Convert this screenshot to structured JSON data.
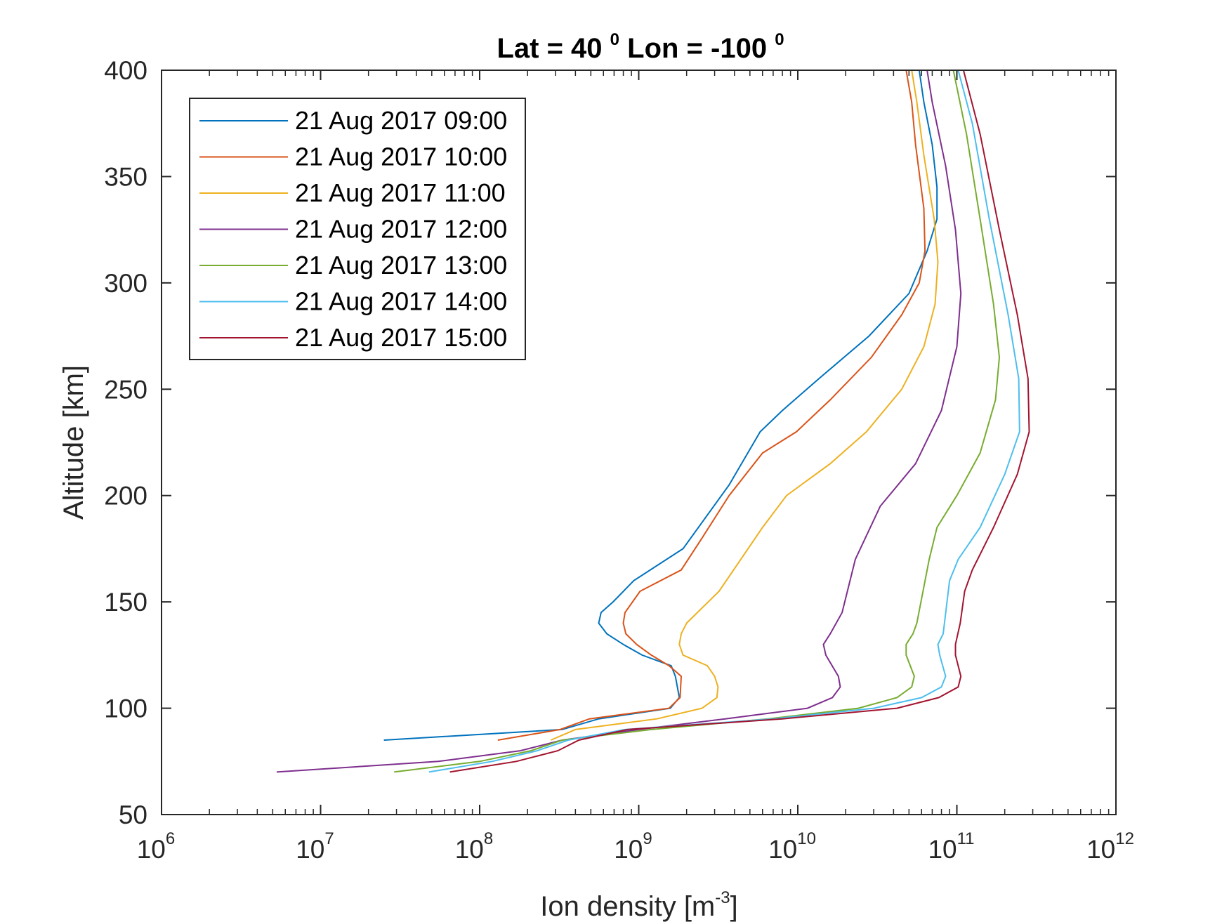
{
  "chart_data": {
    "type": "line",
    "title": {
      "main_a": "Lat = 40 ",
      "sup_a": "0",
      "main_b": " Lon = -100 ",
      "sup_b": "0"
    },
    "xlabel": {
      "text": "Ion density [m",
      "sup": "-3",
      "end": "]"
    },
    "ylabel": "Altitude [km]",
    "xscale": "log",
    "xlim": [
      1000000,
      1000000000000
    ],
    "ylim": [
      50,
      400
    ],
    "grid": false,
    "legend_position": "top-left",
    "x_ticks": [
      {
        "base": "10",
        "exp": "6",
        "value": 1000000
      },
      {
        "base": "10",
        "exp": "7",
        "value": 10000000
      },
      {
        "base": "10",
        "exp": "8",
        "value": 100000000
      },
      {
        "base": "10",
        "exp": "9",
        "value": 1000000000
      },
      {
        "base": "10",
        "exp": "10",
        "value": 10000000000
      },
      {
        "base": "10",
        "exp": "11",
        "value": 100000000000
      },
      {
        "base": "10",
        "exp": "12",
        "value": 1000000000000
      }
    ],
    "y_ticks": [
      "50",
      "100",
      "150",
      "200",
      "250",
      "300",
      "350",
      "400"
    ],
    "series": [
      {
        "name": "21 Aug 2017 09:00",
        "color": "#0072BD",
        "points": [
          [
            25000000,
            85
          ],
          [
            330000000,
            90
          ],
          [
            560000000,
            95
          ],
          [
            1580000000,
            100
          ],
          [
            1800000000,
            105
          ],
          [
            1700000000,
            115
          ],
          [
            1600000000,
            120
          ],
          [
            1050000000,
            125
          ],
          [
            800000000,
            130
          ],
          [
            630000000,
            135
          ],
          [
            560000000,
            140
          ],
          [
            580000000,
            145
          ],
          [
            690000000,
            150
          ],
          [
            930000000,
            160
          ],
          [
            1900000000,
            175
          ],
          [
            3700000000,
            205
          ],
          [
            5800000000,
            230
          ],
          [
            8000000000,
            240
          ],
          [
            13600000000,
            255
          ],
          [
            28000000000,
            275
          ],
          [
            50000000000,
            295
          ],
          [
            65000000000,
            315
          ],
          [
            75000000000,
            330
          ],
          [
            75000000000,
            345
          ],
          [
            70000000000,
            365
          ],
          [
            62000000000,
            385
          ],
          [
            58000000000,
            400
          ]
        ]
      },
      {
        "name": "21 Aug 2017 10:00",
        "color": "#D95319",
        "points": [
          [
            130000000,
            85
          ],
          [
            320000000,
            90
          ],
          [
            490000000,
            95
          ],
          [
            1550000000,
            100
          ],
          [
            1820000000,
            105
          ],
          [
            1850000000,
            115
          ],
          [
            1550000000,
            120
          ],
          [
            1200000000,
            125
          ],
          [
            970000000,
            130
          ],
          [
            830000000,
            135
          ],
          [
            800000000,
            140
          ],
          [
            820000000,
            145
          ],
          [
            1020000000,
            155
          ],
          [
            1850000000,
            165
          ],
          [
            2500000000,
            180
          ],
          [
            3700000000,
            200
          ],
          [
            6000000000,
            220
          ],
          [
            9800000000,
            230
          ],
          [
            16000000000,
            245
          ],
          [
            29000000000,
            265
          ],
          [
            45000000000,
            285
          ],
          [
            58000000000,
            300
          ],
          [
            63000000000,
            315
          ],
          [
            62000000000,
            335
          ],
          [
            55000000000,
            365
          ],
          [
            52000000000,
            385
          ],
          [
            48000000000,
            400
          ]
        ]
      },
      {
        "name": "21 Aug 2017 11:00",
        "color": "#EDB120",
        "points": [
          [
            280000000,
            85
          ],
          [
            400000000,
            90
          ],
          [
            1300000000,
            95
          ],
          [
            2500000000,
            100
          ],
          [
            3100000000,
            105
          ],
          [
            3150000000,
            110
          ],
          [
            3000000000,
            115
          ],
          [
            2700000000,
            120
          ],
          [
            1900000000,
            125
          ],
          [
            1800000000,
            130
          ],
          [
            1850000000,
            135
          ],
          [
            2000000000,
            140
          ],
          [
            3200000000,
            155
          ],
          [
            6000000000,
            185
          ],
          [
            8500000000,
            200
          ],
          [
            16000000000,
            215
          ],
          [
            27000000000,
            230
          ],
          [
            45000000000,
            250
          ],
          [
            62000000000,
            270
          ],
          [
            73000000000,
            290
          ],
          [
            76000000000,
            310
          ],
          [
            72000000000,
            330
          ],
          [
            62000000000,
            360
          ],
          [
            56000000000,
            385
          ],
          [
            52000000000,
            400
          ]
        ]
      },
      {
        "name": "21 Aug 2017 12:00",
        "color": "#7E2F8E",
        "points": [
          [
            5300000,
            70
          ],
          [
            55000000,
            75
          ],
          [
            180000000,
            80
          ],
          [
            330000000,
            85
          ],
          [
            1000000000,
            90
          ],
          [
            3500000000,
            95
          ],
          [
            11500000000,
            100
          ],
          [
            16500000000,
            105
          ],
          [
            18500000000,
            110
          ],
          [
            18000000000,
            115
          ],
          [
            15000000000,
            125
          ],
          [
            14500000000,
            130
          ],
          [
            16000000000,
            135
          ],
          [
            19000000000,
            145
          ],
          [
            23000000000,
            170
          ],
          [
            33000000000,
            195
          ],
          [
            55000000000,
            215
          ],
          [
            80000000000,
            240
          ],
          [
            100000000000,
            270
          ],
          [
            106000000000,
            295
          ],
          [
            98000000000,
            325
          ],
          [
            85000000000,
            355
          ],
          [
            70000000000,
            385
          ],
          [
            65000000000,
            400
          ]
        ]
      },
      {
        "name": "21 Aug 2017 13:00",
        "color": "#77AC30",
        "points": [
          [
            29000000,
            70
          ],
          [
            100000000,
            75
          ],
          [
            210000000,
            80
          ],
          [
            330000000,
            85
          ],
          [
            1200000000,
            90
          ],
          [
            6500000000,
            95
          ],
          [
            24000000000,
            100
          ],
          [
            42000000000,
            105
          ],
          [
            52000000000,
            110
          ],
          [
            54000000000,
            115
          ],
          [
            48000000000,
            125
          ],
          [
            48000000000,
            130
          ],
          [
            53000000000,
            135
          ],
          [
            56000000000,
            140
          ],
          [
            67000000000,
            170
          ],
          [
            75000000000,
            185
          ],
          [
            100000000000,
            200
          ],
          [
            140000000000,
            220
          ],
          [
            175000000000,
            245
          ],
          [
            185000000000,
            265
          ],
          [
            170000000000,
            290
          ],
          [
            140000000000,
            330
          ],
          [
            115000000000,
            370
          ],
          [
            95000000000,
            400
          ]
        ]
      },
      {
        "name": "21 Aug 2017 14:00",
        "color": "#4DBEEE",
        "points": [
          [
            48000000,
            70
          ],
          [
            120000000,
            75
          ],
          [
            230000000,
            80
          ],
          [
            360000000,
            85
          ],
          [
            820000000,
            90
          ],
          [
            7000000000,
            95
          ],
          [
            30000000000,
            100
          ],
          [
            60000000000,
            105
          ],
          [
            80000000000,
            110
          ],
          [
            85000000000,
            115
          ],
          [
            78000000000,
            125
          ],
          [
            76000000000,
            130
          ],
          [
            82000000000,
            135
          ],
          [
            90000000000,
            160
          ],
          [
            102000000000,
            170
          ],
          [
            140000000000,
            185
          ],
          [
            200000000000,
            210
          ],
          [
            248000000000,
            230
          ],
          [
            245000000000,
            255
          ],
          [
            210000000000,
            285
          ],
          [
            160000000000,
            330
          ],
          [
            125000000000,
            375
          ],
          [
            102000000000,
            400
          ]
        ]
      },
      {
        "name": "21 Aug 2017 15:00",
        "color": "#A2142F",
        "points": [
          [
            65000000,
            70
          ],
          [
            170000000,
            75
          ],
          [
            310000000,
            80
          ],
          [
            420000000,
            85
          ],
          [
            850000000,
            90
          ],
          [
            8000000000,
            95
          ],
          [
            42000000000,
            100
          ],
          [
            77000000000,
            105
          ],
          [
            102000000000,
            110
          ],
          [
            106000000000,
            115
          ],
          [
            98000000000,
            125
          ],
          [
            98000000000,
            130
          ],
          [
            105000000000,
            140
          ],
          [
            112000000000,
            155
          ],
          [
            125000000000,
            165
          ],
          [
            170000000000,
            185
          ],
          [
            240000000000,
            210
          ],
          [
            285000000000,
            230
          ],
          [
            280000000000,
            255
          ],
          [
            240000000000,
            285
          ],
          [
            185000000000,
            325
          ],
          [
            140000000000,
            370
          ],
          [
            110000000000,
            400
          ]
        ]
      }
    ]
  }
}
